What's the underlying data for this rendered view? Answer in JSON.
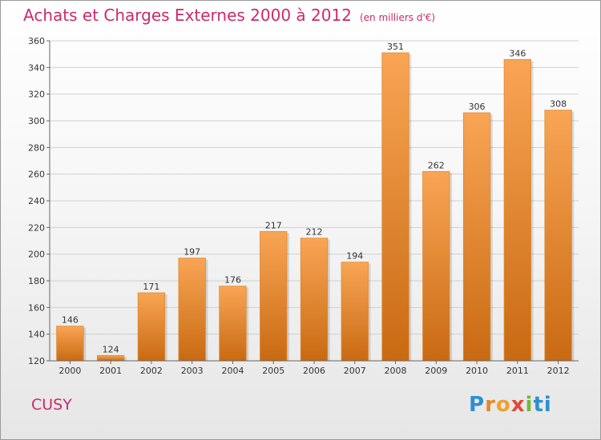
{
  "header": {
    "title": "Achats et Charges Externes 2000 à 2012",
    "subtitle": "(en milliers d'€)"
  },
  "footer": {
    "commune": "CUSY",
    "logo_letters": [
      "P",
      "r",
      "o",
      "x",
      "i",
      "t",
      "i"
    ]
  },
  "colors": {
    "accent": "#cc2a6a",
    "bar_top": "#f9a555",
    "bar_bottom": "#c96a12",
    "grid": "#d0d0d0"
  },
  "chart_data": {
    "type": "bar",
    "title": "Achats et Charges Externes 2000 à 2012",
    "subtitle": "(en milliers d'€)",
    "categories": [
      "2000",
      "2001",
      "2002",
      "2003",
      "2004",
      "2005",
      "2006",
      "2007",
      "2008",
      "2009",
      "2010",
      "2011",
      "2012"
    ],
    "values": [
      146,
      124,
      171,
      197,
      176,
      217,
      212,
      194,
      351,
      262,
      306,
      346,
      308
    ],
    "data_labels": [
      "146",
      "124",
      "171",
      "197",
      "176",
      "217",
      "212",
      "194",
      "351",
      "262",
      "306",
      "346",
      "308"
    ],
    "ylim": [
      120,
      360
    ],
    "yticks": [
      120,
      140,
      160,
      180,
      200,
      220,
      240,
      260,
      280,
      300,
      320,
      340,
      360
    ],
    "ytick_labels": [
      "120",
      "140",
      "160",
      "180",
      "200",
      "220",
      "240",
      "260",
      "280",
      "300",
      "320",
      "340",
      "360"
    ],
    "grid": true,
    "legend": "none"
  }
}
